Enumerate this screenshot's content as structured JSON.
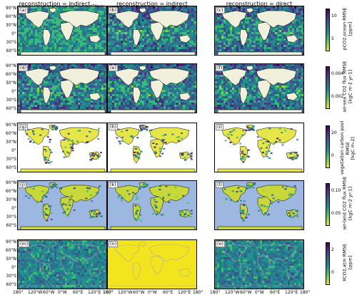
{
  "chart_data": {
    "type": "heatmap",
    "columns": [
      {
        "title": "reconstruction = indirect",
        "subscript": "ATMonly"
      },
      {
        "title": "reconstruction = indirect",
        "subscript": ""
      },
      {
        "title": "reconstruction = direct",
        "subscript": ""
      }
    ],
    "panel_labels": [
      "(a)",
      "(b)",
      "(c)",
      "(d)",
      "(e)",
      "(f)",
      "(g)",
      "(h)",
      "(i)",
      "(j)",
      "(k)",
      "(l)",
      "(m)",
      "(n)",
      "(o)"
    ],
    "lat_ticks": [
      "90°N",
      "60°N",
      "30°N",
      "0°",
      "30°S",
      "60°S"
    ],
    "lon_ticks": [
      "180°",
      "120°W",
      "60°W",
      "0°W",
      "60°E",
      "120°E",
      "180°"
    ],
    "rows": [
      {
        "variable": "pCO2 ocean RMSE",
        "label_lines": [
          "pCO2,ocean RMSE",
          "[ppm]"
        ],
        "ticks": [
          "10",
          "5"
        ],
        "fill": "ocean",
        "land_color": "#f0f0dc",
        "bg_color": "#ffffff"
      },
      {
        "variable": "air-sea CO2 flux RMSE",
        "label_lines": [
          "air-sea CO2 flux RMSE",
          "[kgC m-2 yr-1]"
        ],
        "ticks": [
          "0.004",
          "0.002"
        ],
        "fill": "ocean",
        "land_color": "#f0f0dc",
        "bg_color": "#ffffff"
      },
      {
        "variable": "vegetation carbon pool RMSE",
        "label_lines": [
          "vegetation carbon pool",
          "RMSE",
          "[kgC m-2]"
        ],
        "ticks": [
          "20",
          "0"
        ],
        "fill": "land",
        "land_color": "#e6e64a",
        "bg_color": "#ffffff"
      },
      {
        "variable": "air-land CO2 flux RMSE",
        "label_lines": [
          "air-land CO2 flux RMSE",
          "[kgC m-2 yr-1]"
        ],
        "ticks": [
          "0.10",
          "0.05"
        ],
        "fill": "land",
        "land_color": "#c8d83a",
        "bg_color": "#9db8e0"
      },
      {
        "variable": "XCO2 atm RMSE",
        "label_lines": [
          "XCO2,atm RMSE",
          "[ppm]"
        ],
        "ticks": [
          "2",
          "0"
        ],
        "fill": "all",
        "land_color": "#3a5a7a",
        "bg_color": "#3a5a7a"
      }
    ],
    "colormap": [
      "#f2e51d",
      "#8ed645",
      "#3bbb75",
      "#21918d",
      "#2c728e",
      "#3b528b",
      "#472d7b",
      "#440154"
    ]
  }
}
